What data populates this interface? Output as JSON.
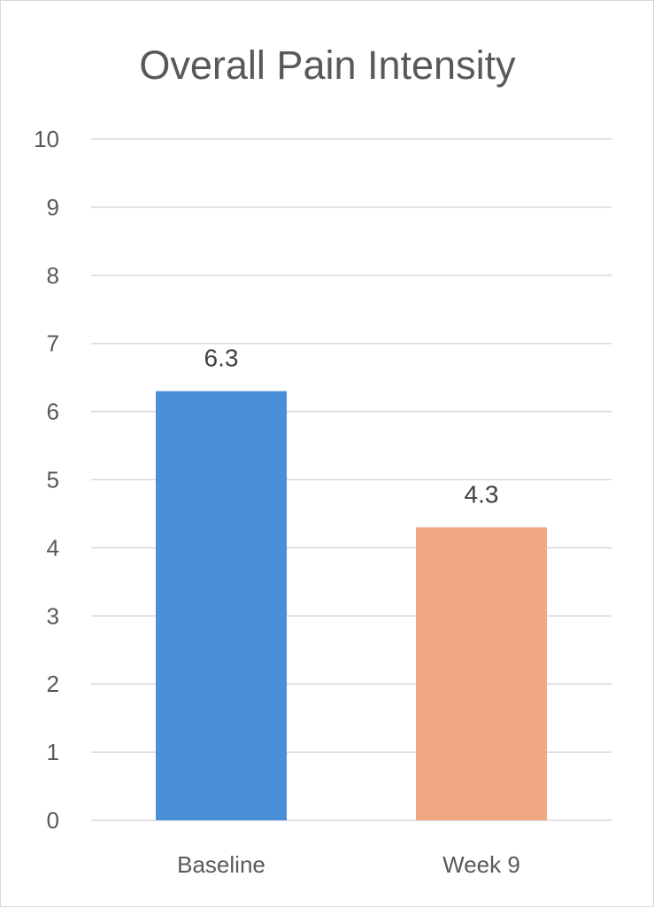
{
  "chart_data": {
    "type": "bar",
    "title": "Overall Pain Intensity",
    "xlabel": "",
    "ylabel": "",
    "categories": [
      "Baseline",
      "Week 9"
    ],
    "values": [
      6.3,
      4.3
    ],
    "data_labels": [
      "6.3",
      "4.3"
    ],
    "bar_colors": [
      "#4a90d9",
      "#f0a882"
    ],
    "ylim": [
      0,
      10
    ],
    "y_ticks": [
      0,
      1,
      2,
      3,
      4,
      5,
      6,
      7,
      8,
      9,
      10
    ],
    "grid": true,
    "legend": "none"
  }
}
